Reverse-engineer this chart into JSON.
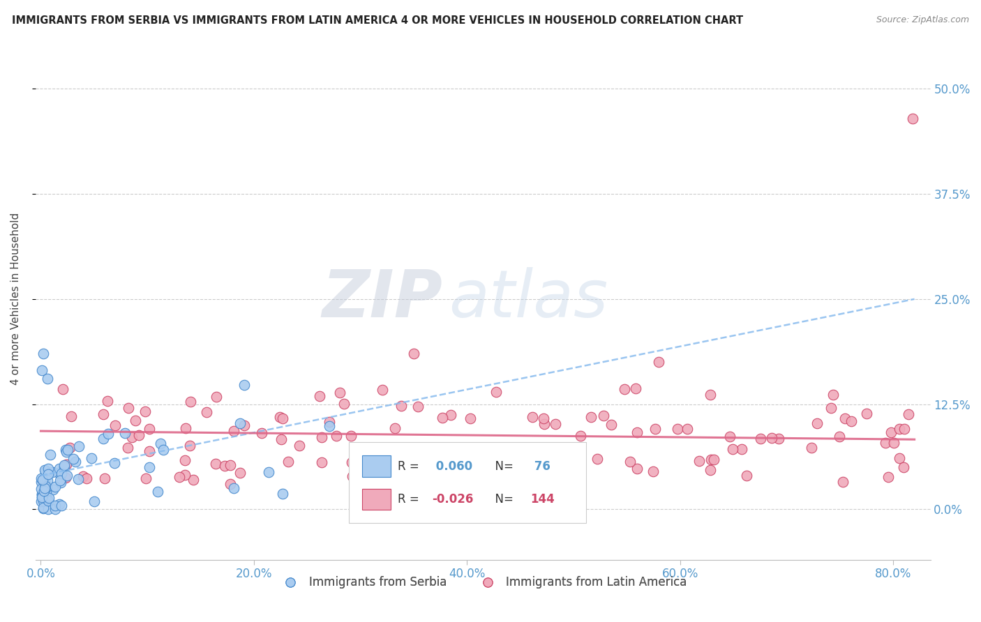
{
  "title": "IMMIGRANTS FROM SERBIA VS IMMIGRANTS FROM LATIN AMERICA 4 OR MORE VEHICLES IN HOUSEHOLD CORRELATION CHART",
  "source": "Source: ZipAtlas.com",
  "ylabel_label": "4 or more Vehicles in Household",
  "xlim": [
    -0.005,
    0.835
  ],
  "ylim": [
    -0.06,
    0.56
  ],
  "serbia_R": 0.06,
  "serbia_N": 76,
  "latin_R": -0.026,
  "latin_N": 144,
  "serbia_color": "#aaccf0",
  "serbia_edge_color": "#4488cc",
  "latin_color": "#f0aabb",
  "latin_edge_color": "#cc4466",
  "serbia_trend_color": "#88bbee",
  "latin_trend_color": "#dd6688",
  "legend_serbia_label": "Immigrants from Serbia",
  "legend_latin_label": "Immigrants from Latin America",
  "watermark_zip": "ZIP",
  "watermark_atlas": "atlas",
  "xtick_vals": [
    0.0,
    0.2,
    0.4,
    0.6,
    0.8
  ],
  "xtick_labels": [
    "0.0%",
    "20.0%",
    "40.0%",
    "60.0%",
    "80.0%"
  ],
  "ytick_vals": [
    0.0,
    0.125,
    0.25,
    0.375,
    0.5
  ],
  "ytick_labels": [
    "0.0%",
    "12.5%",
    "25.0%",
    "37.5%",
    "50.0%"
  ],
  "tick_color": "#5599cc",
  "grid_color": "#cccccc",
  "title_color": "#222222",
  "source_color": "#888888",
  "ylabel_color": "#444444"
}
